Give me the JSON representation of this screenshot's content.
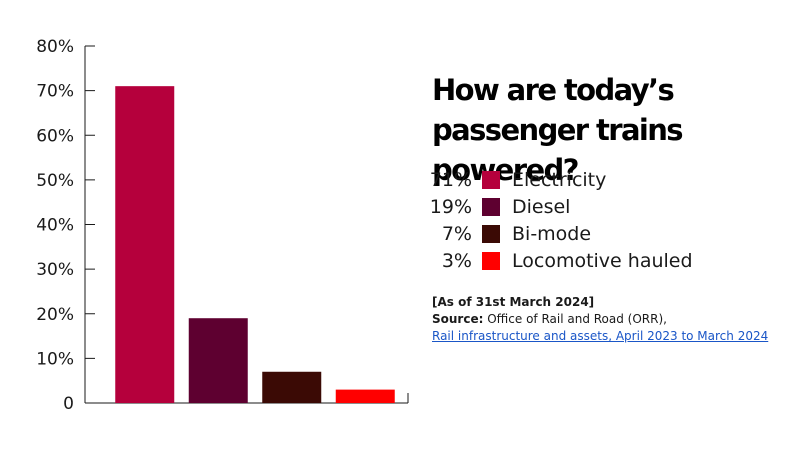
{
  "chart_data": {
    "type": "bar",
    "categories": [
      "Electricity",
      "Diesel",
      "Bi-mode",
      "Locomotive hauled"
    ],
    "values": [
      71,
      19,
      7,
      3
    ],
    "colors": [
      "#b5003c",
      "#5e0030",
      "#3b0a05",
      "#ff0000"
    ],
    "ylim": [
      0,
      80
    ],
    "yticks": [
      0,
      10,
      20,
      30,
      40,
      50,
      60,
      70,
      80
    ],
    "ytick_labels": [
      "0",
      "10%",
      "20%",
      "30%",
      "40%",
      "50%",
      "60%",
      "70%",
      "80%"
    ],
    "grid": false,
    "title": "How are today’s passenger trains powered?",
    "legend_position": "right"
  },
  "legend": [
    {
      "pct": "71%",
      "label": "Electricity",
      "color": "#b5003c"
    },
    {
      "pct": "19%",
      "label": "Diesel",
      "color": "#5e0030"
    },
    {
      "pct": "7%",
      "label": "Bi-mode",
      "color": "#3b0a05"
    },
    {
      "pct": "3%",
      "label": "Locomotive hauled",
      "color": "#ff0000"
    }
  ],
  "notes": {
    "date": "[As of 31st March 2024]",
    "source_label": "Source:",
    "source_text": " Office of Rail and Road (ORR),",
    "link_text": "Rail infrastructure and assets, April 2023 to March 2024"
  }
}
